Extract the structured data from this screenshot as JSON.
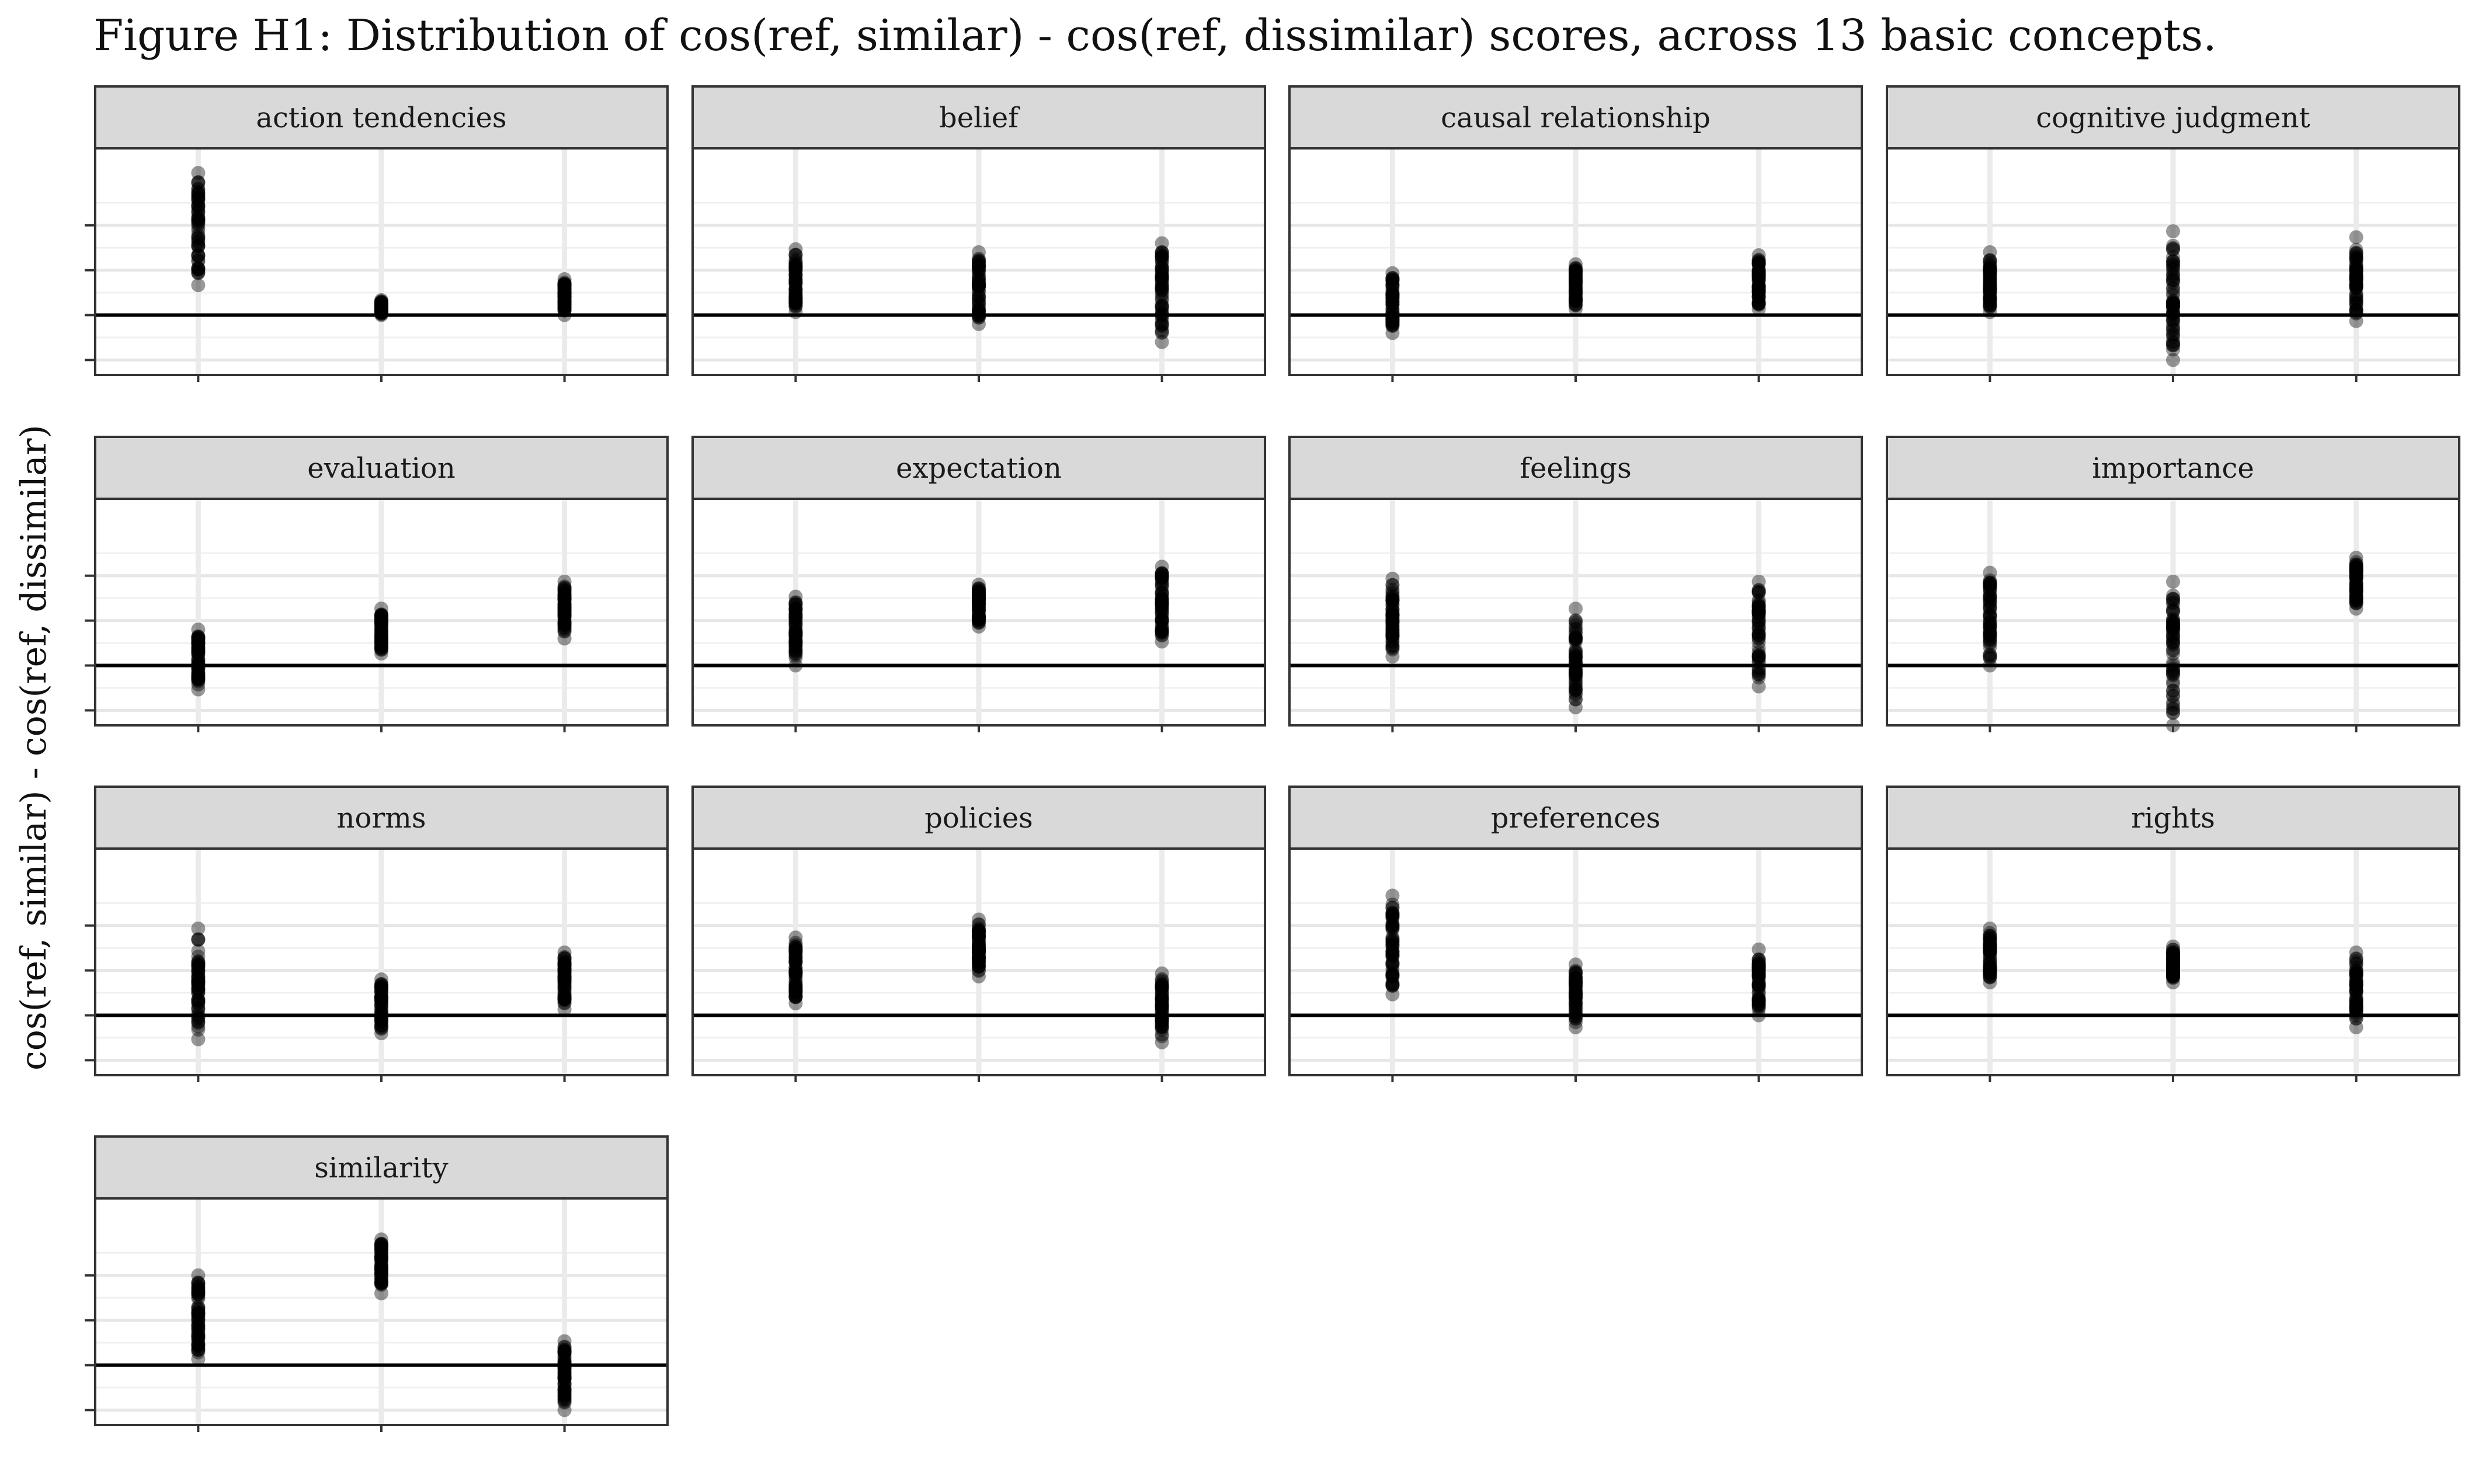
{
  "figure": {
    "title": "Figure H1: Distribution of cos(ref, similar) - cos(ref, dissimilar) scores, across 13 basic concepts.",
    "ylabel": "cos(ref, similar) - cos(ref, dissimilar)"
  },
  "chart_data": {
    "type": "scatter",
    "layout": "facet-grid",
    "ylim": [
      -0.02,
      0.0557
    ],
    "yticks": [
      -0.015,
      0,
      0.015,
      0.03
    ],
    "reference_line_y": 0,
    "grid": true,
    "point_color": "#000000",
    "point_alpha": 0.4,
    "strip_color": "#d9d9d9",
    "panels": [
      {
        "name": "action tendencies",
        "columns": [
          [
            0.01,
            0.0475
          ],
          [
            0,
            0.005
          ],
          [
            0,
            0.012
          ]
        ]
      },
      {
        "name": "belief",
        "columns": [
          [
            0.001,
            0.022
          ],
          [
            -0.003,
            0.021
          ],
          [
            -0.009,
            0.024
          ]
        ]
      },
      {
        "name": "causal relationship",
        "columns": [
          [
            -0.006,
            0.014
          ],
          [
            0.002,
            0.017
          ],
          [
            0.002,
            0.02
          ]
        ]
      },
      {
        "name": "cognitive judgment",
        "columns": [
          [
            0.001,
            0.021
          ],
          [
            -0.015,
            0.028
          ],
          [
            -0.002,
            0.026
          ]
        ]
      },
      {
        "name": "evaluation",
        "columns": [
          [
            -0.008,
            0.012
          ],
          [
            0.004,
            0.019
          ],
          [
            0.009,
            0.028
          ]
        ]
      },
      {
        "name": "expectation",
        "columns": [
          [
            0,
            0.023
          ],
          [
            0.013,
            0.027
          ],
          [
            0.008,
            0.033
          ]
        ]
      },
      {
        "name": "feelings",
        "columns": [
          [
            0.003,
            0.029
          ],
          [
            -0.014,
            0.019
          ],
          [
            -0.007,
            0.028
          ]
        ]
      },
      {
        "name": "importance",
        "columns": [
          [
            0,
            0.031
          ],
          [
            -0.02,
            0.028
          ],
          [
            0.019,
            0.036
          ]
        ]
      },
      {
        "name": "norms",
        "columns": [
          [
            -0.008,
            0.029
          ],
          [
            -0.006,
            0.012
          ],
          [
            0.002,
            0.021
          ]
        ]
      },
      {
        "name": "policies",
        "columns": [
          [
            0.004,
            0.026
          ],
          [
            0.013,
            0.032
          ],
          [
            -0.009,
            0.014
          ]
        ]
      },
      {
        "name": "preferences",
        "columns": [
          [
            0.007,
            0.04
          ],
          [
            -0.004,
            0.017
          ],
          [
            0,
            0.022
          ]
        ]
      },
      {
        "name": "rights",
        "columns": [
          [
            0.011,
            0.029
          ],
          [
            0.011,
            0.023
          ],
          [
            -0.004,
            0.021
          ]
        ]
      },
      {
        "name": "similarity",
        "columns": [
          [
            0.002,
            0.03
          ],
          [
            0.024,
            0.042
          ],
          [
            -0.015,
            0.008
          ]
        ]
      }
    ]
  }
}
